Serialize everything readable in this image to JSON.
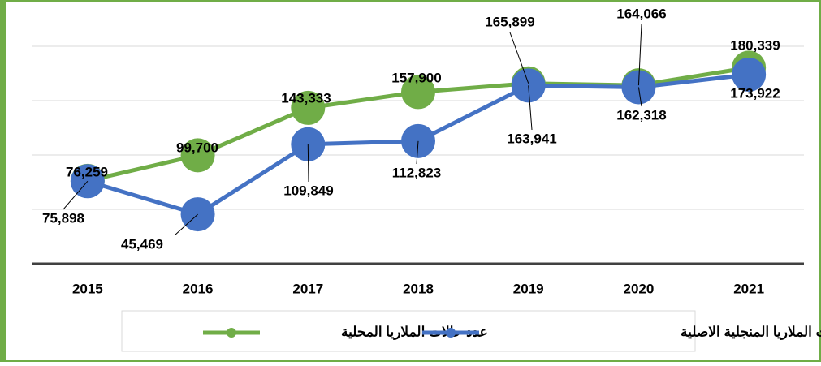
{
  "chart_data": {
    "type": "line",
    "categories": [
      "2015",
      "2016",
      "2017",
      "2018",
      "2019",
      "2020",
      "2021"
    ],
    "series": [
      {
        "name": "عدد حالات الملاريا المحلية",
        "color": "#70ad47",
        "values": [
          76259,
          99700,
          143333,
          157900,
          165899,
          164066,
          180339
        ],
        "value_labels": [
          "76,259",
          "99,700",
          "143,333",
          "157,900",
          "165,899",
          "164,066",
          "180,339"
        ]
      },
      {
        "name": "عدد حالات الملاريا المنجلية الاصلية",
        "color": "#4472c4",
        "values": [
          75898,
          45469,
          109849,
          112823,
          163941,
          162318,
          173922
        ],
        "value_labels": [
          "75,898",
          "45,469",
          "109,849",
          "112,823",
          "163,941",
          "162,318",
          "173,922"
        ]
      }
    ],
    "ylim": [
      0,
      200000
    ],
    "yticks": [
      0,
      50000,
      100000,
      150000,
      200000
    ],
    "grid": true
  }
}
